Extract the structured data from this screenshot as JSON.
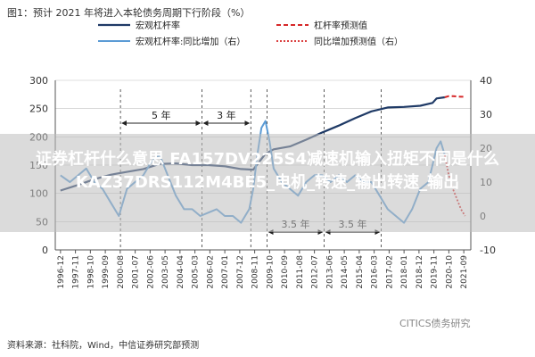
{
  "figure_title": "图1：预计 2021 年将进入本轮债务周期下行阶段（%）",
  "source": "资料来源：社科院，Wind，中信证券研究部预测",
  "watermark": "CITICS债务研究",
  "overlay_text": "证券杠杆什么意思 FA157DV225S4减速机输入扭矩不同是什么KAZ37DRS112M4BE5_电机_转速_输出转速_输出",
  "colors": {
    "leverage": "#1f3a66",
    "yoy": "#5b9bd5",
    "forecast": "#d62728",
    "grid": "#c0c0c0"
  },
  "chart_data": {
    "type": "line",
    "legend": {
      "placement": "top",
      "items": [
        "宏观杠杆率",
        "杠杆率预测值",
        "宏观杠杆率:同比增加（右）",
        "同比增加预测值（右）"
      ]
    },
    "x_ticks": [
      "1996-12",
      "1997-11",
      "1998-10",
      "1999-09",
      "2000-08",
      "2001-07",
      "2002-06",
      "2003-05",
      "2004-04",
      "2005-03",
      "2006-02",
      "2007-01",
      "2007-12",
      "2008-11",
      "2009-10",
      "2010-09",
      "2011-08",
      "2012-07",
      "2013-06",
      "2014-05",
      "2015-04",
      "2016-03",
      "2017-02",
      "2018-01",
      "2018-12",
      "2019-11",
      "2020-10",
      "2021-09"
    ],
    "y_left": {
      "range": [
        0,
        300
      ],
      "ticks": [
        0,
        50,
        100,
        150,
        200,
        250,
        300
      ]
    },
    "y_right": {
      "range": [
        -10,
        40
      ],
      "ticks": [
        -10,
        0,
        10,
        20,
        30,
        40
      ]
    },
    "annotations": [
      "5 年",
      "3 年",
      "3.5 年",
      "3.5 年"
    ],
    "series": [
      {
        "name": "宏观杠杆率",
        "axis": "left",
        "x": [
          1996.92,
          1998.0,
          1999.0,
          2000.0,
          2001.0,
          2002.0,
          2003.0,
          2004.0,
          2005.0,
          2006.0,
          2007.0,
          2008.0,
          2008.75,
          2009.5,
          2010.0,
          2011.0,
          2012.0,
          2013.0,
          2014.0,
          2015.0,
          2016.0,
          2017.0,
          2018.0,
          2019.0,
          2019.75,
          2020.0,
          2020.5
        ],
        "y": [
          105,
          115,
          125,
          133,
          138,
          143,
          152,
          153,
          150,
          150,
          148,
          143,
          142,
          170,
          178,
          183,
          195,
          208,
          220,
          233,
          245,
          252,
          253,
          255,
          260,
          268,
          270
        ]
      },
      {
        "name": "杠杆率预测值",
        "axis": "left",
        "x": [
          2020.5,
          2020.75,
          2021.0,
          2021.5,
          2021.75
        ],
        "y": [
          270,
          272,
          272,
          271,
          271
        ]
      },
      {
        "name": "宏观杠杆率:同比增加（右）",
        "axis": "right",
        "x": [
          1996.92,
          1997.5,
          1998.0,
          1998.5,
          1999.0,
          1999.5,
          2000.0,
          2000.5,
          2001.0,
          2001.5,
          2002.0,
          2002.5,
          2003.0,
          2003.5,
          2004.0,
          2004.5,
          2005.0,
          2005.5,
          2006.0,
          2006.5,
          2007.0,
          2007.5,
          2008.0,
          2008.5,
          2008.75,
          2009.0,
          2009.25,
          2009.5,
          2009.75,
          2010.0,
          2010.5,
          2011.0,
          2011.5,
          2012.0,
          2012.5,
          2013.0,
          2013.5,
          2014.0,
          2014.5,
          2015.0,
          2015.5,
          2016.0,
          2016.5,
          2017.0,
          2017.5,
          2018.0,
          2018.5,
          2019.0,
          2019.5,
          2020.0,
          2020.25,
          2020.5
        ],
        "y": [
          12,
          10,
          12,
          14,
          10,
          8,
          4,
          0,
          8,
          10,
          12,
          16,
          18,
          12,
          6,
          2,
          2,
          0,
          1,
          2,
          0,
          0,
          -2,
          2,
          8,
          18,
          26,
          28,
          22,
          14,
          10,
          8,
          6,
          10,
          12,
          12,
          10,
          12,
          10,
          12,
          10,
          10,
          6,
          2,
          0,
          -2,
          2,
          8,
          10,
          20,
          22,
          18
        ]
      },
      {
        "name": "同比增加预测值（右）",
        "axis": "right",
        "x": [
          2020.5,
          2020.75,
          2021.0,
          2021.5,
          2021.75
        ],
        "y": [
          18,
          12,
          8,
          2,
          0
        ]
      }
    ]
  }
}
